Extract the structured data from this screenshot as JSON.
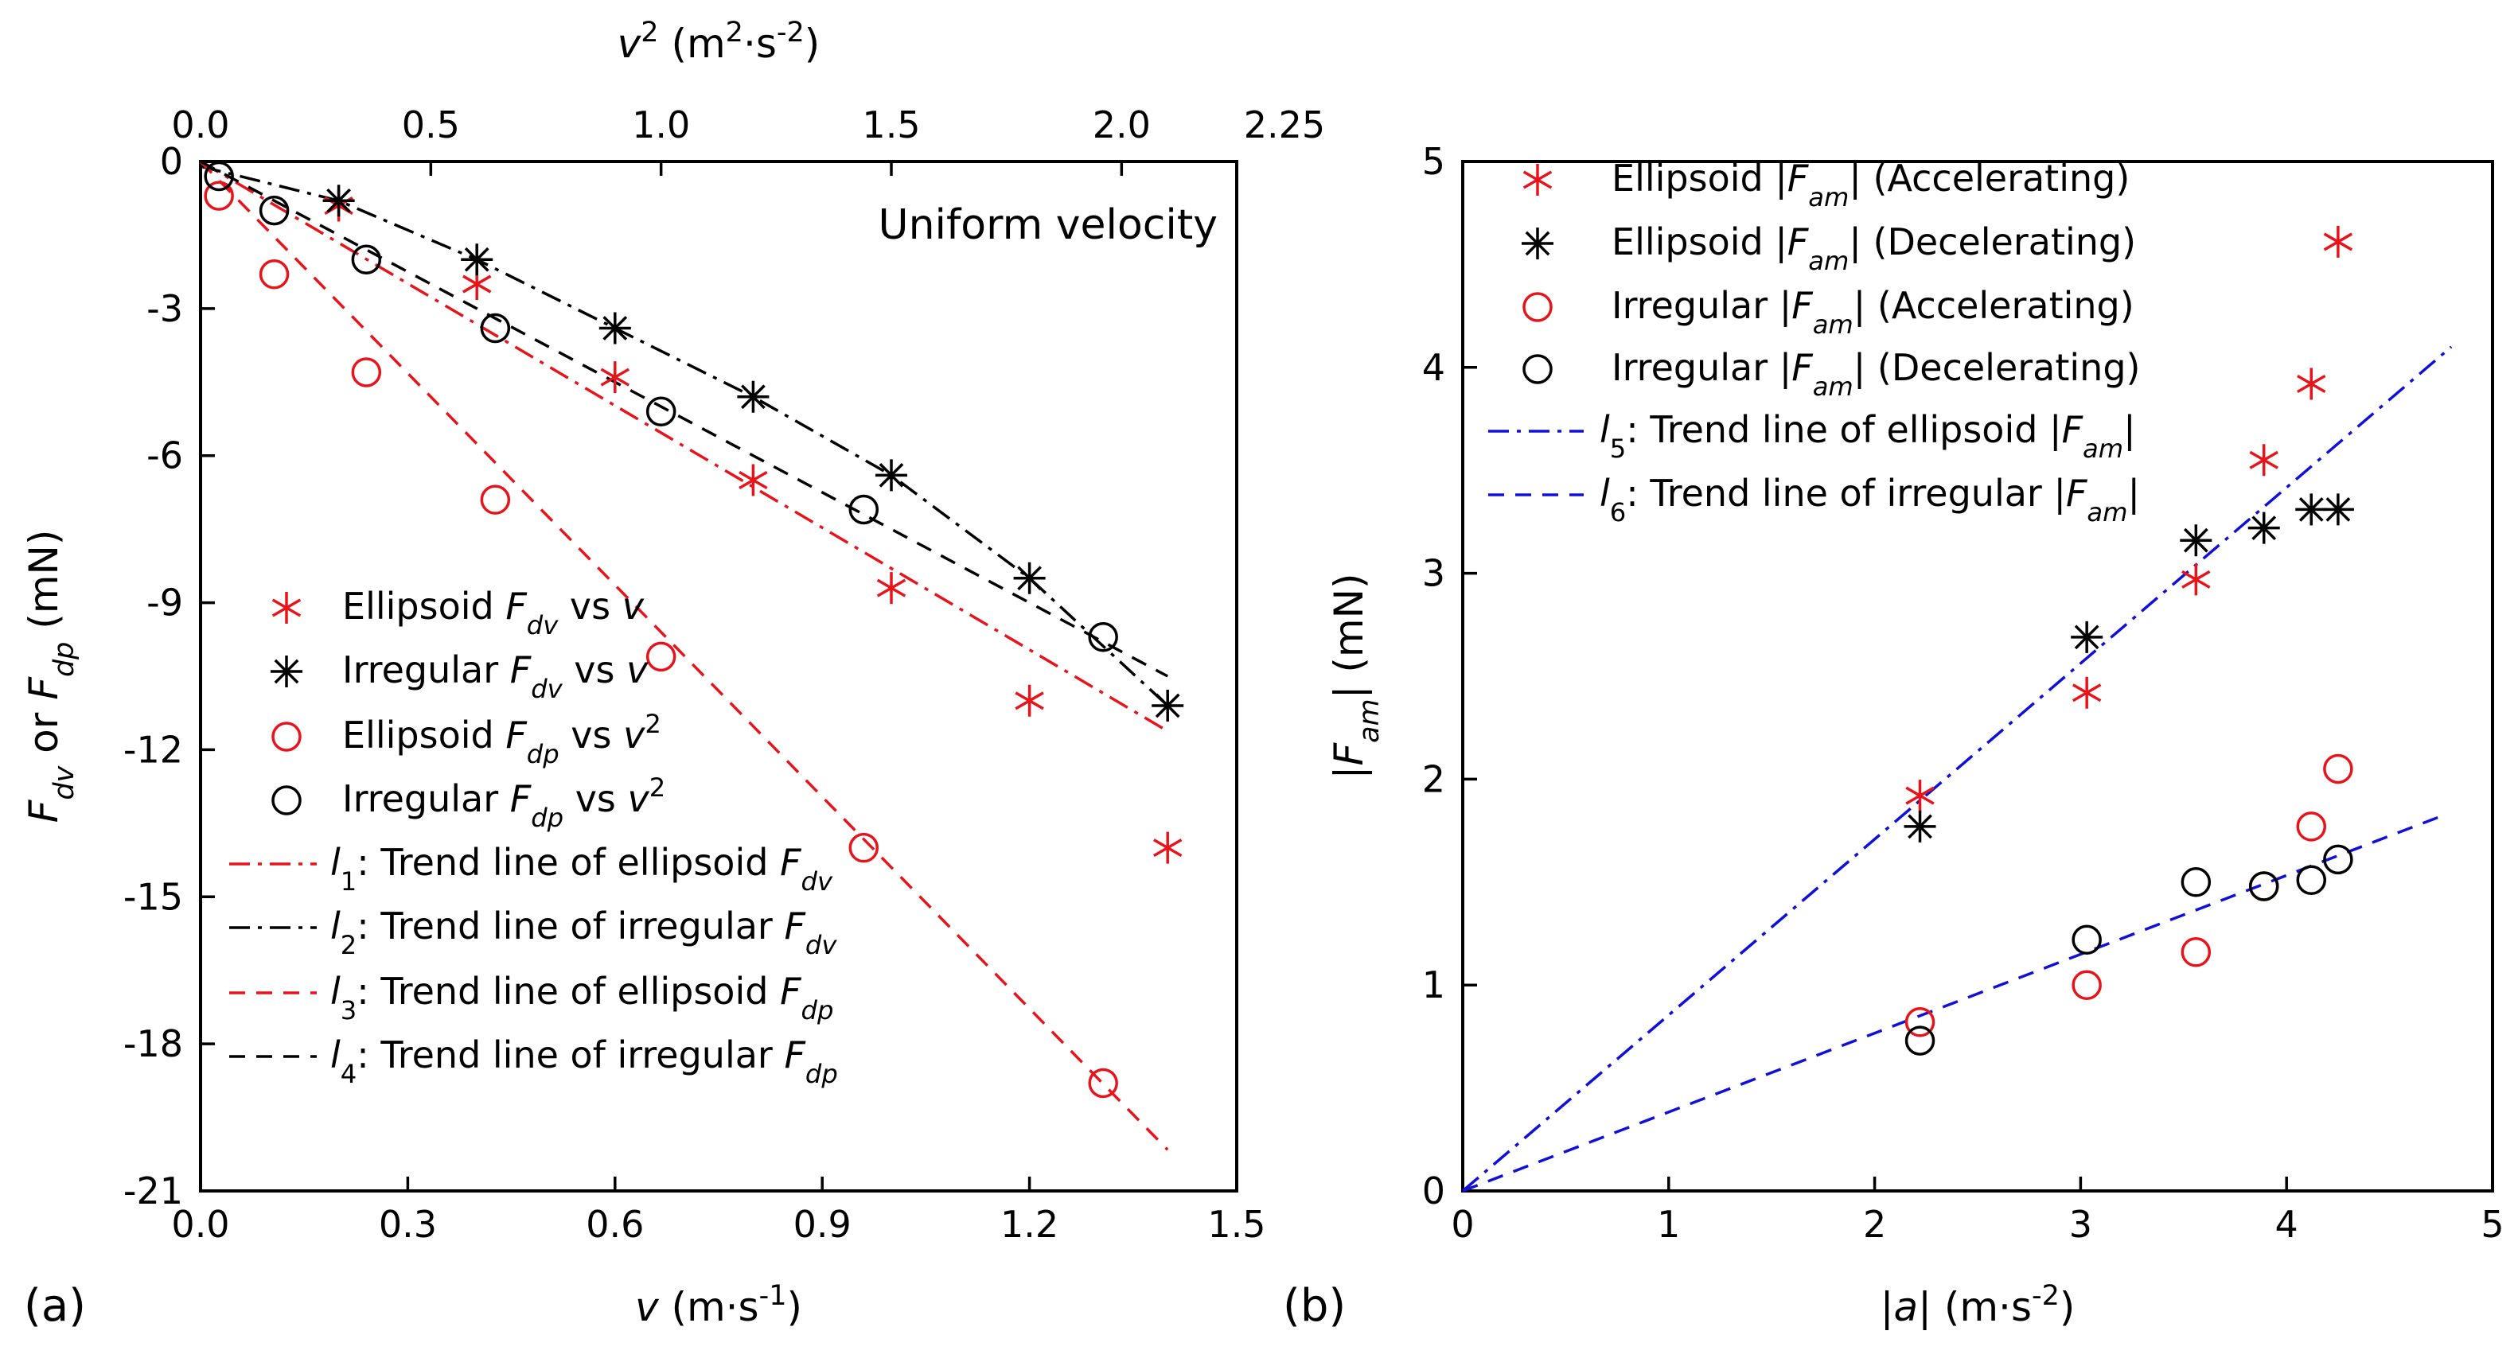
{
  "chart_data": [
    {
      "panel": "(a)",
      "type": "scatter",
      "annotation": "Uniform velocity",
      "xlabel_bottom": {
        "base": "v",
        "units": " (m·s",
        "sup": "-1",
        "close": ")"
      },
      "xlabel_top": {
        "base": "v",
        "sup1": "2",
        "units": " (m",
        "sup2": "2",
        "mid": "·s",
        "sup3": "-2",
        "close": ")"
      },
      "ylabel": {
        "a": "F",
        "a_sub": "dv",
        "mid": " or ",
        "b": "F",
        "b_sub": "dp",
        "units": " (mN)"
      },
      "xlim": [
        0,
        1.5
      ],
      "x2lim": [
        0,
        2.25
      ],
      "ylim": [
        -21,
        0
      ],
      "x_ticks": [
        "0.0",
        "0.3",
        "0.6",
        "0.9",
        "1.2",
        "1.5"
      ],
      "x2_ticks": [
        "0.0",
        "0.5",
        "1.0",
        "1.5",
        "2.0",
        "2.25"
      ],
      "y_ticks": [
        "0",
        "-3",
        "-6",
        "-9",
        "-12",
        "-15",
        "-18",
        "-21"
      ],
      "grid": false,
      "legend_position": "bottom-left",
      "series": [
        {
          "legend": {
            "pre": "Ellipsoid ",
            "sym": "F",
            "sub": "dv",
            "post": " vs ",
            "var": "v"
          },
          "color": "#e8141c",
          "marker": "asterisk-6",
          "axis": "v",
          "x": [
            0.2,
            0.4,
            0.6,
            0.8,
            1.0,
            1.2,
            1.4
          ],
          "y": [
            -0.9,
            -2.5,
            -4.4,
            -6.5,
            -8.7,
            -11.0,
            -14.0
          ]
        },
        {
          "legend": {
            "pre": "Irregular ",
            "sym": "F",
            "sub": "dv",
            "post": " vs ",
            "var": "v"
          },
          "color": "#000000",
          "marker": "asterisk-8",
          "axis": "v",
          "x": [
            0.2,
            0.4,
            0.6,
            0.8,
            1.0,
            1.2,
            1.4
          ],
          "y": [
            -0.8,
            -2.0,
            -3.4,
            -4.8,
            -6.4,
            -8.5,
            -11.1
          ]
        },
        {
          "legend": {
            "pre": "Ellipsoid ",
            "sym": "F",
            "sub": "dp",
            "post": " vs ",
            "var": "v",
            "sup": "2"
          },
          "color": "#e8141c",
          "marker": "circle",
          "axis": "v2",
          "x": [
            0.04,
            0.16,
            0.36,
            0.64,
            1.0,
            1.44,
            1.96
          ],
          "y": [
            -0.7,
            -2.3,
            -4.3,
            -6.9,
            -10.1,
            -14.0,
            -18.8
          ]
        },
        {
          "legend": {
            "pre": "Irregular ",
            "sym": "F",
            "sub": "dp",
            "post": " vs ",
            "var": "v",
            "sup": "2"
          },
          "color": "#000000",
          "marker": "circle",
          "axis": "v2",
          "x": [
            0.04,
            0.16,
            0.36,
            0.64,
            1.0,
            1.44,
            1.96
          ],
          "y": [
            -0.3,
            -1.0,
            -2.0,
            -3.4,
            -5.1,
            -7.1,
            -9.7
          ]
        }
      ],
      "trend_lines": [
        {
          "legend": {
            "l": "l",
            "n": "1",
            "text": ": Trend line of ellipsoid ",
            "sym": "F",
            "sub": "dv"
          },
          "color": "#e8141c",
          "dash": "dashdot",
          "x": [
            0.0,
            0.1,
            0.2,
            0.3,
            0.4,
            0.5,
            0.6,
            0.7,
            0.8,
            0.9,
            1.0,
            1.1,
            1.2,
            1.3,
            1.4
          ],
          "y": [
            0,
            -0.83,
            -1.66,
            -2.49,
            -3.32,
            -4.15,
            -4.98,
            -5.81,
            -6.64,
            -7.47,
            -8.3,
            -9.13,
            -9.96,
            -10.79,
            -11.62
          ]
        },
        {
          "legend": {
            "l": "l",
            "n": "2",
            "text": ": Trend line of irregular ",
            "sym": "F",
            "sub": "dv"
          },
          "color": "#000000",
          "dash": "dashdot",
          "x": [
            0.0,
            0.2,
            0.4,
            0.6,
            0.8,
            1.0,
            1.2,
            1.4
          ],
          "y": [
            -0.1,
            -0.8,
            -2.0,
            -3.4,
            -4.8,
            -6.4,
            -8.5,
            -11.1
          ]
        },
        {
          "legend": {
            "l": "l",
            "n": "3",
            "text": ": Trend line of ellipsoid ",
            "sym": "F",
            "sub": "dp"
          },
          "color": "#e8141c",
          "dash": "dash",
          "axis": "v2",
          "x": [
            0.0,
            0.25,
            0.5,
            0.75,
            1.0,
            1.25,
            1.5,
            1.75,
            2.0,
            2.1
          ],
          "y": [
            0,
            -2.4,
            -4.8,
            -7.2,
            -9.6,
            -12.0,
            -14.4,
            -16.8,
            -19.2,
            -20.16
          ]
        },
        {
          "legend": {
            "l": "l",
            "n": "4",
            "text": ": Trend line of irregular ",
            "sym": "F",
            "sub": "dp"
          },
          "color": "#000000",
          "dash": "dash",
          "axis": "v2",
          "x": [
            0.0,
            0.25,
            0.5,
            0.75,
            1.0,
            1.25,
            1.5,
            1.75,
            2.0,
            2.1
          ],
          "y": [
            0,
            -1.25,
            -2.5,
            -3.75,
            -5.0,
            -6.25,
            -7.5,
            -8.75,
            -10.0,
            -10.5
          ]
        }
      ]
    },
    {
      "panel": "(b)",
      "type": "scatter",
      "xlabel": {
        "open": "|",
        "sym": "a",
        "close": "|",
        "units": " (m·s",
        "sup": "-2",
        "end": ")"
      },
      "ylabel": {
        "open": "|",
        "sym": "F",
        "sub": "am",
        "close": "|",
        "units": " (mN)"
      },
      "xlim": [
        0,
        5
      ],
      "ylim": [
        0,
        5
      ],
      "x_ticks": [
        "0",
        "1",
        "2",
        "3",
        "4",
        "5"
      ],
      "y_ticks": [
        "0",
        "1",
        "2",
        "3",
        "4",
        "5"
      ],
      "grid": false,
      "legend_position": "top-left",
      "series": [
        {
          "legend": {
            "pre": "Ellipsoid |",
            "sym": "F",
            "sub": "am",
            "post": "| (Accelerating)"
          },
          "color": "#e8141c",
          "marker": "asterisk-6",
          "x": [
            2.22,
            3.03,
            3.56,
            3.89,
            4.12,
            4.25
          ],
          "y": [
            1.92,
            2.42,
            2.97,
            3.55,
            3.92,
            4.61
          ]
        },
        {
          "legend": {
            "pre": "Ellipsoid |",
            "sym": "F",
            "sub": "am",
            "post": "| (Decelerating)"
          },
          "color": "#000000",
          "marker": "asterisk-8",
          "x": [
            2.22,
            3.03,
            3.56,
            3.89,
            4.12,
            4.25
          ],
          "y": [
            1.77,
            2.69,
            3.16,
            3.22,
            3.31,
            3.31
          ]
        },
        {
          "legend": {
            "pre": "Irregular |",
            "sym": "F",
            "sub": "am",
            "post": "| (Accelerating)"
          },
          "color": "#e8141c",
          "marker": "circle",
          "x": [
            2.22,
            3.03,
            3.56,
            3.89,
            4.12,
            4.25
          ],
          "y": [
            0.82,
            1.0,
            1.16,
            1.48,
            1.77,
            2.05
          ]
        },
        {
          "legend": {
            "pre": "Irregular |",
            "sym": "F",
            "sub": "am",
            "post": "| (Decelerating)"
          },
          "color": "#000000",
          "marker": "circle",
          "x": [
            2.22,
            3.03,
            3.56,
            3.89,
            4.12,
            4.25
          ],
          "y": [
            0.73,
            1.22,
            1.5,
            1.48,
            1.51,
            1.61
          ]
        }
      ],
      "trend_lines": [
        {
          "legend": {
            "l": "l",
            "n": "5",
            "text": ": Trend line of ellipsoid |",
            "sym": "F",
            "sub": "am",
            "end": "|"
          },
          "color": "#1010d8",
          "dash": "dashdot",
          "x": [
            0,
            4.8
          ],
          "y": [
            0,
            4.1
          ]
        },
        {
          "legend": {
            "l": "l",
            "n": "6",
            "text": ": Trend line of irregular |",
            "sym": "F",
            "sub": "am",
            "end": "|"
          },
          "color": "#1010d8",
          "dash": "dash",
          "x": [
            0,
            4.75
          ],
          "y": [
            0,
            1.82
          ]
        }
      ]
    }
  ]
}
